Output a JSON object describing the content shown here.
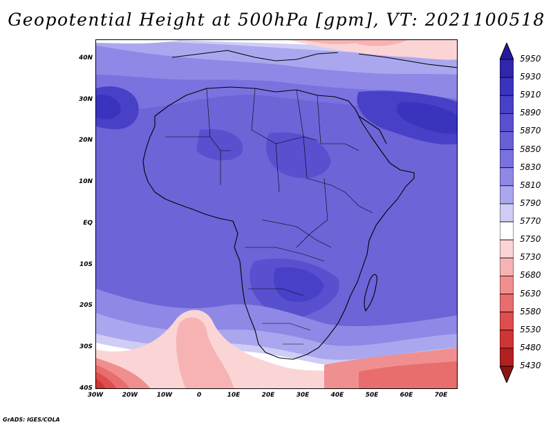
{
  "title": "Geopotential Height at 500hPa [gpm], VT: 2021100518",
  "footer": "GrADS: IGES/COLA",
  "map": {
    "lat_labels": [
      "40N",
      "30N",
      "20N",
      "10N",
      "EQ",
      "10S",
      "20S",
      "30S",
      "40S"
    ],
    "lon_labels": [
      "30W",
      "20W",
      "10W",
      "0",
      "10E",
      "20E",
      "30E",
      "40E",
      "50E",
      "60E",
      "70E"
    ],
    "lat_range": [
      -40,
      45
    ],
    "lon_range": [
      -30,
      75
    ]
  },
  "colorbar": {
    "labels": [
      "5950",
      "5930",
      "5910",
      "5890",
      "5870",
      "5850",
      "5830",
      "5810",
      "5790",
      "5770",
      "5750",
      "5730",
      "5680",
      "5630",
      "5580",
      "5530",
      "5480",
      "5430"
    ],
    "colors": [
      "#24199a",
      "#2f26ac",
      "#3a33bd",
      "#4940c8",
      "#5850cf",
      "#6860d6",
      "#7a72de",
      "#8f88e6",
      "#aba7ef",
      "#cfcdf6",
      "#ffffff",
      "#fbd5d5",
      "#f7b3b3",
      "#f08f8f",
      "#e86d6d",
      "#de4e4e",
      "#cf3535",
      "#b32020",
      "#8b1515"
    ]
  }
}
